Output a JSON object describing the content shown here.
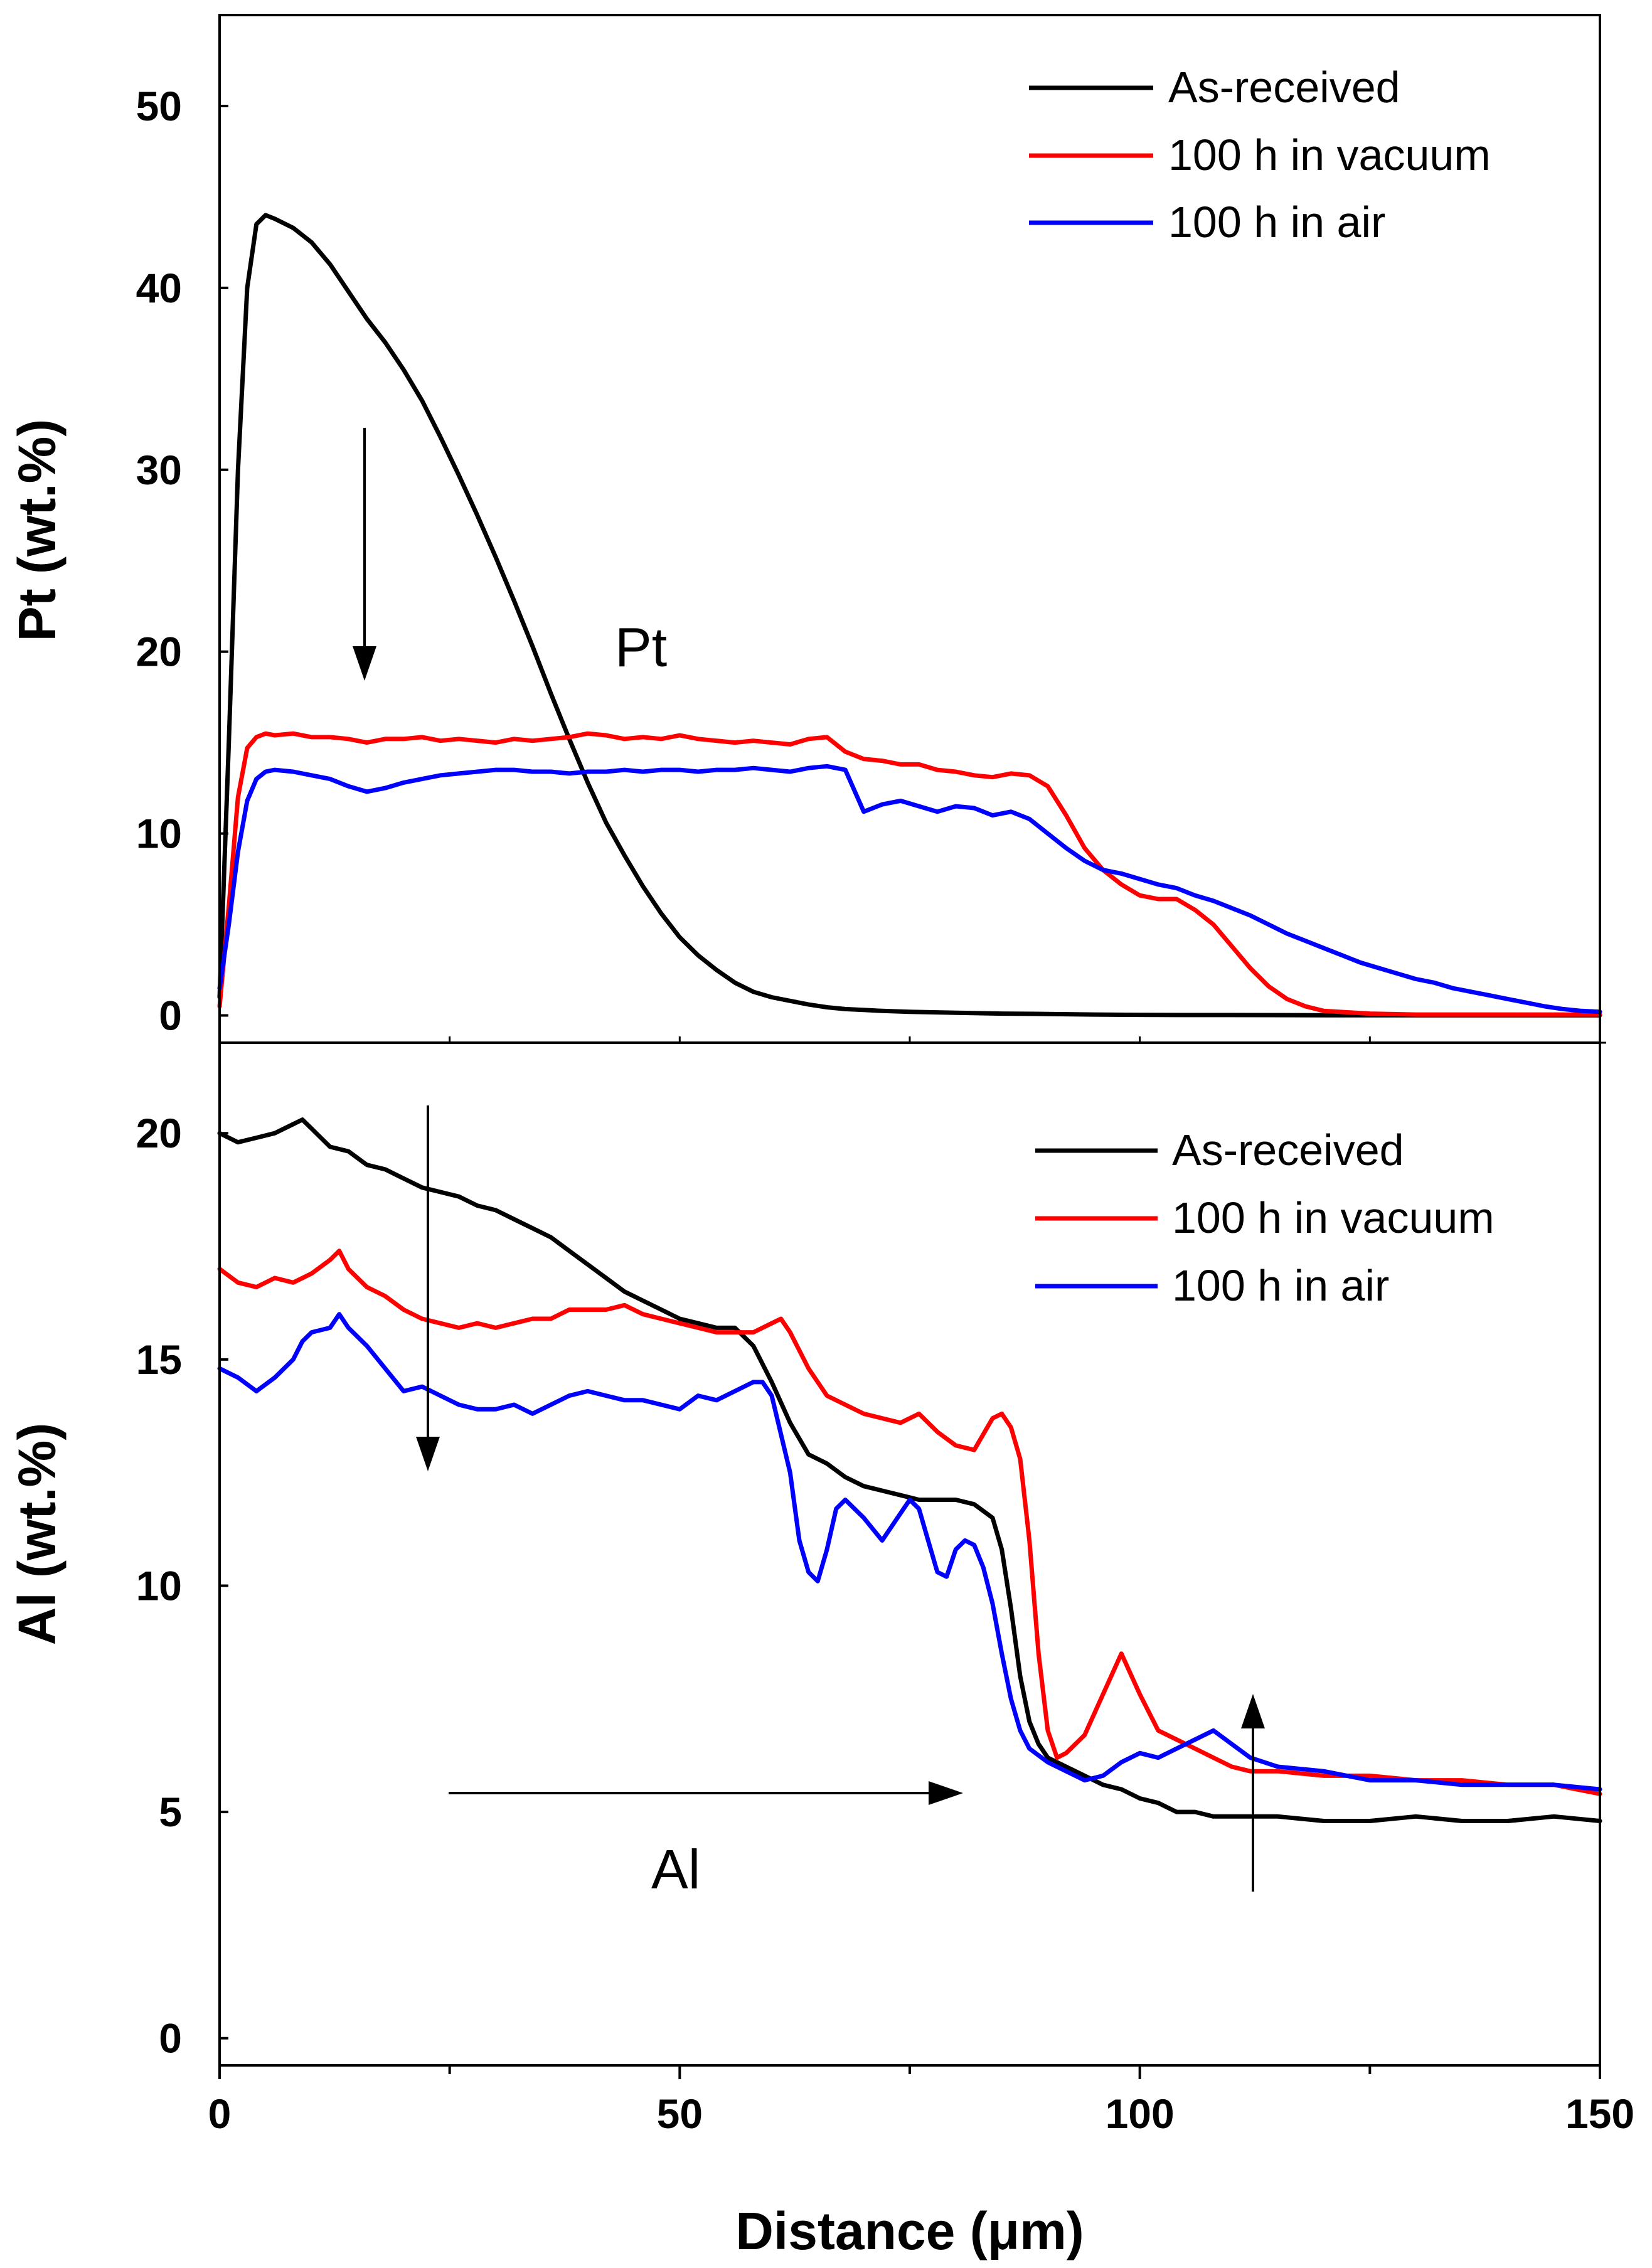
{
  "chart_data": [
    {
      "type": "line",
      "panel": "top",
      "title": "",
      "xlabel": "",
      "ylabel": "Pt (wt.%)",
      "xlim": [
        0,
        150
      ],
      "ylim": [
        -1.5,
        55
      ],
      "yticks": [
        0,
        10,
        20,
        30,
        40,
        50
      ],
      "grid": false,
      "legend_position": "top-right",
      "annotations": [
        {
          "text": "Pt",
          "x": 46,
          "y": 20
        }
      ],
      "arrows": [
        {
          "from": [
            15.7,
            33
          ],
          "to": [
            15.7,
            18.5
          ]
        }
      ],
      "series": [
        {
          "name": "As-received",
          "color": "#000000",
          "x": [
            0,
            1,
            2,
            3,
            4,
            5,
            6,
            8,
            10,
            12,
            14,
            16,
            18,
            20,
            22,
            24,
            26,
            28,
            30,
            32,
            34,
            36,
            38,
            40,
            42,
            44,
            46,
            48,
            50,
            52,
            54,
            56,
            58,
            60,
            62,
            64,
            66,
            68,
            70,
            72,
            75,
            80,
            85,
            90,
            95,
            100,
            105,
            110,
            120,
            130,
            140,
            150
          ],
          "y": [
            1,
            15,
            30,
            40,
            43.5,
            44,
            43.8,
            43.3,
            42.5,
            41.3,
            39.8,
            38.3,
            37,
            35.5,
            33.8,
            31.8,
            29.7,
            27.5,
            25.2,
            22.8,
            20.3,
            17.7,
            15.2,
            12.8,
            10.6,
            8.8,
            7.1,
            5.6,
            4.3,
            3.3,
            2.5,
            1.8,
            1.3,
            1,
            0.8,
            0.6,
            0.45,
            0.35,
            0.3,
            0.25,
            0.2,
            0.15,
            0.1,
            0.08,
            0.05,
            0.03,
            0.02,
            0.02,
            0.01,
            0.01,
            0.01,
            0.01
          ]
        },
        {
          "name": "100 h in vacuum",
          "color": "#ff0000",
          "x": [
            0,
            1,
            2,
            3,
            4,
            5,
            6,
            8,
            10,
            12,
            14,
            16,
            18,
            20,
            22,
            24,
            26,
            28,
            30,
            32,
            34,
            36,
            38,
            40,
            42,
            44,
            46,
            48,
            50,
            52,
            54,
            56,
            58,
            60,
            62,
            64,
            66,
            68,
            70,
            72,
            74,
            76,
            78,
            80,
            82,
            84,
            86,
            88,
            90,
            92,
            94,
            96,
            98,
            100,
            102,
            104,
            106,
            108,
            110,
            112,
            114,
            116,
            118,
            120,
            125,
            130,
            140,
            150
          ],
          "y": [
            0.5,
            6,
            12,
            14.7,
            15.3,
            15.5,
            15.4,
            15.5,
            15.3,
            15.3,
            15.2,
            15.0,
            15.2,
            15.2,
            15.3,
            15.1,
            15.2,
            15.1,
            15.0,
            15.2,
            15.1,
            15.2,
            15.3,
            15.5,
            15.4,
            15.2,
            15.3,
            15.2,
            15.4,
            15.2,
            15.1,
            15.0,
            15.1,
            15.0,
            14.9,
            15.2,
            15.3,
            14.5,
            14.1,
            14.0,
            13.8,
            13.8,
            13.5,
            13.4,
            13.2,
            13.1,
            13.3,
            13.2,
            12.6,
            11.0,
            9.2,
            8.0,
            7.2,
            6.6,
            6.4,
            6.4,
            5.8,
            5.0,
            3.8,
            2.6,
            1.6,
            0.9,
            0.5,
            0.25,
            0.1,
            0.05,
            0.05,
            0.05
          ]
        },
        {
          "name": "100 h in air",
          "color": "#0000ff",
          "x": [
            0,
            1,
            2,
            3,
            4,
            5,
            6,
            8,
            10,
            12,
            14,
            16,
            18,
            20,
            22,
            24,
            26,
            28,
            30,
            32,
            34,
            36,
            38,
            40,
            42,
            44,
            46,
            48,
            50,
            52,
            54,
            56,
            58,
            60,
            62,
            64,
            66,
            68,
            70,
            72,
            74,
            76,
            78,
            80,
            82,
            84,
            86,
            88,
            90,
            92,
            94,
            96,
            98,
            100,
            102,
            104,
            106,
            108,
            110,
            112,
            114,
            116,
            118,
            120,
            122,
            124,
            126,
            128,
            130,
            132,
            134,
            136,
            138,
            140,
            142,
            144,
            146,
            148,
            150
          ],
          "y": [
            1.5,
            5,
            9,
            11.8,
            13.0,
            13.4,
            13.5,
            13.4,
            13.2,
            13.0,
            12.6,
            12.3,
            12.5,
            12.8,
            13.0,
            13.2,
            13.3,
            13.4,
            13.5,
            13.5,
            13.4,
            13.4,
            13.3,
            13.4,
            13.4,
            13.5,
            13.4,
            13.5,
            13.5,
            13.4,
            13.5,
            13.5,
            13.6,
            13.5,
            13.4,
            13.6,
            13.7,
            13.5,
            11.2,
            11.6,
            11.8,
            11.5,
            11.2,
            11.5,
            11.4,
            11.0,
            11.2,
            10.8,
            10.0,
            9.2,
            8.5,
            8.0,
            7.8,
            7.5,
            7.2,
            7.0,
            6.6,
            6.3,
            5.9,
            5.5,
            5.0,
            4.5,
            4.1,
            3.7,
            3.3,
            2.9,
            2.6,
            2.3,
            2.0,
            1.8,
            1.5,
            1.3,
            1.1,
            0.9,
            0.7,
            0.5,
            0.35,
            0.25,
            0.2
          ]
        }
      ]
    },
    {
      "type": "line",
      "panel": "bottom",
      "title": "",
      "xlabel": "Distance (μm)",
      "ylabel": "Al (wt.%)",
      "xlim": [
        0,
        150
      ],
      "ylim": [
        -0.6,
        22
      ],
      "xticks": [
        0,
        50,
        100,
        150
      ],
      "yticks": [
        0,
        5,
        10,
        15,
        20
      ],
      "grid": false,
      "legend_position": "top-right",
      "annotations": [
        {
          "text": "Al",
          "x": 51,
          "y": 3.7
        }
      ],
      "arrows": [
        {
          "from": [
            23,
            20.4
          ],
          "to": [
            23,
            12.2
          ]
        },
        {
          "from": [
            25,
            5.2
          ],
          "to": [
            80.5,
            5.2
          ]
        },
        {
          "from": [
            112.5,
            3.1
          ],
          "to": [
            112.5,
            7.4
          ]
        }
      ],
      "series": [
        {
          "name": "As-received",
          "color": "#000000",
          "x": [
            0,
            2,
            4,
            6,
            8,
            9,
            10,
            12,
            14,
            16,
            18,
            20,
            22,
            24,
            26,
            28,
            30,
            32,
            34,
            36,
            38,
            40,
            42,
            44,
            46,
            48,
            50,
            52,
            54,
            56,
            58,
            60,
            62,
            64,
            66,
            68,
            70,
            72,
            74,
            76,
            78,
            80,
            82,
            84,
            85,
            86,
            87,
            88,
            89,
            90,
            92,
            94,
            96,
            98,
            100,
            102,
            104,
            106,
            108,
            110,
            112,
            115,
            120,
            125,
            130,
            135,
            140,
            145,
            150
          ],
          "y": [
            20.0,
            19.8,
            19.9,
            20.0,
            20.2,
            20.3,
            20.1,
            19.7,
            19.6,
            19.3,
            19.2,
            19.0,
            18.8,
            18.7,
            18.6,
            18.4,
            18.3,
            18.1,
            17.9,
            17.7,
            17.4,
            17.1,
            16.8,
            16.5,
            16.3,
            16.1,
            15.9,
            15.8,
            15.7,
            15.7,
            15.3,
            14.5,
            13.6,
            12.9,
            12.7,
            12.4,
            12.2,
            12.1,
            12.0,
            11.9,
            11.9,
            11.9,
            11.8,
            11.5,
            10.8,
            9.5,
            8.0,
            7.0,
            6.5,
            6.2,
            6.0,
            5.8,
            5.6,
            5.5,
            5.3,
            5.2,
            5.0,
            5.0,
            4.9,
            4.9,
            4.9,
            4.9,
            4.8,
            4.8,
            4.9,
            4.8,
            4.8,
            4.9,
            4.8
          ]
        },
        {
          "name": "100 h in vacuum",
          "color": "#ff0000",
          "x": [
            0,
            2,
            4,
            6,
            8,
            10,
            12,
            13,
            14,
            16,
            18,
            20,
            22,
            24,
            26,
            28,
            30,
            32,
            34,
            36,
            38,
            40,
            42,
            44,
            46,
            48,
            50,
            52,
            54,
            56,
            58,
            60,
            61,
            62,
            64,
            66,
            68,
            70,
            72,
            74,
            76,
            78,
            80,
            82,
            84,
            85,
            86,
            87,
            88,
            89,
            90,
            91,
            92,
            94,
            96,
            98,
            100,
            102,
            104,
            106,
            108,
            110,
            112,
            115,
            120,
            125,
            130,
            135,
            140,
            145,
            150
          ],
          "y": [
            17.0,
            16.7,
            16.6,
            16.8,
            16.7,
            16.9,
            17.2,
            17.4,
            17.0,
            16.6,
            16.4,
            16.1,
            15.9,
            15.8,
            15.7,
            15.8,
            15.7,
            15.8,
            15.9,
            15.9,
            16.1,
            16.1,
            16.1,
            16.2,
            16.0,
            15.9,
            15.8,
            15.7,
            15.6,
            15.6,
            15.6,
            15.8,
            15.9,
            15.6,
            14.8,
            14.2,
            14.0,
            13.8,
            13.7,
            13.6,
            13.8,
            13.4,
            13.1,
            13.0,
            13.7,
            13.8,
            13.5,
            12.8,
            11.0,
            8.5,
            6.8,
            6.2,
            6.3,
            6.7,
            7.6,
            8.5,
            7.6,
            6.8,
            6.6,
            6.4,
            6.2,
            6.0,
            5.9,
            5.9,
            5.8,
            5.8,
            5.7,
            5.7,
            5.6,
            5.6,
            5.4
          ]
        },
        {
          "name": "100 h in air",
          "color": "#0000ff",
          "x": [
            0,
            2,
            4,
            6,
            8,
            9,
            10,
            12,
            13,
            14,
            16,
            18,
            20,
            22,
            24,
            26,
            28,
            30,
            32,
            34,
            36,
            38,
            40,
            42,
            44,
            46,
            48,
            50,
            52,
            54,
            56,
            58,
            59,
            60,
            62,
            63,
            64,
            65,
            66,
            67,
            68,
            70,
            72,
            74,
            75,
            76,
            77,
            78,
            79,
            80,
            81,
            82,
            83,
            84,
            85,
            86,
            87,
            88,
            90,
            92,
            94,
            96,
            98,
            100,
            102,
            104,
            106,
            108,
            110,
            112,
            115,
            120,
            125,
            130,
            135,
            140,
            145,
            150
          ],
          "y": [
            14.8,
            14.6,
            14.3,
            14.6,
            15.0,
            15.4,
            15.6,
            15.7,
            16.0,
            15.7,
            15.3,
            14.8,
            14.3,
            14.4,
            14.2,
            14.0,
            13.9,
            13.9,
            14.0,
            13.8,
            14.0,
            14.2,
            14.3,
            14.2,
            14.1,
            14.1,
            14.0,
            13.9,
            14.2,
            14.1,
            14.3,
            14.5,
            14.5,
            14.2,
            12.5,
            11.0,
            10.3,
            10.1,
            10.8,
            11.7,
            11.9,
            11.5,
            11.0,
            11.6,
            11.9,
            11.7,
            11.0,
            10.3,
            10.2,
            10.8,
            11.0,
            10.9,
            10.4,
            9.6,
            8.5,
            7.5,
            6.8,
            6.4,
            6.1,
            5.9,
            5.7,
            5.8,
            6.1,
            6.3,
            6.2,
            6.4,
            6.6,
            6.8,
            6.5,
            6.2,
            6.0,
            5.9,
            5.7,
            5.7,
            5.6,
            5.6,
            5.6,
            5.5
          ]
        }
      ]
    }
  ]
}
